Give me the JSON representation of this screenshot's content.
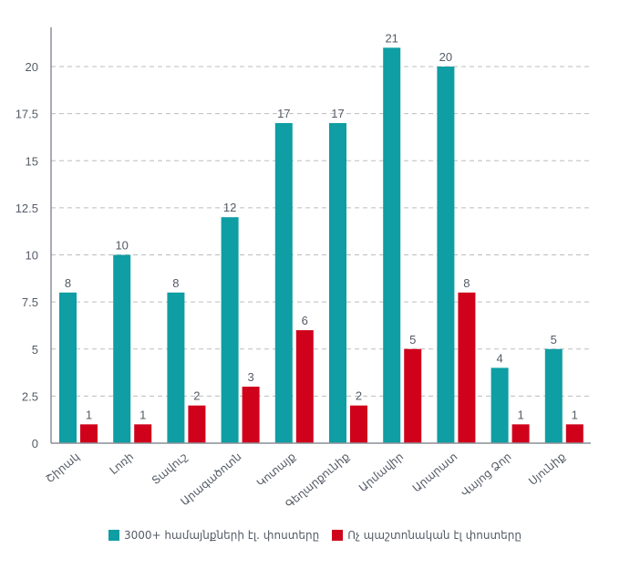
{
  "chart_data": {
    "type": "bar",
    "title": "",
    "xlabel": "",
    "ylabel": "",
    "ylim": [
      0,
      22.5
    ],
    "yticks": [
      0,
      2.5,
      5,
      7.5,
      10,
      12.5,
      15,
      17.5,
      20
    ],
    "ytick_labels": [
      "0",
      "2.5",
      "5",
      "7.5",
      "10",
      "12.5",
      "15",
      "17.5",
      "20"
    ],
    "grid": true,
    "legend_position": "bottom",
    "categories": [
      "Շիրակ",
      "Լոռի",
      "Տավուշ",
      "Արագածոտն",
      "Կոտայք",
      "Գեղարքունիք",
      "Արմավիր",
      "Արարատ",
      "Վայոց Ձոր",
      "Սյունիք"
    ],
    "series": [
      {
        "name": "3000+ համայնքների էլ. փոստերը",
        "color": "#0E9EA3",
        "values": [
          8,
          10,
          8,
          12,
          17,
          17,
          21,
          20,
          4,
          5
        ]
      },
      {
        "name": "Ոչ պաշտոնական էլ փոստերը",
        "color": "#D0021B",
        "values": [
          1,
          1,
          2,
          3,
          6,
          2,
          5,
          8,
          1,
          1
        ]
      }
    ]
  },
  "legend": {
    "items": [
      {
        "label": "3000+ համայնքների էլ. փոստերը",
        "color": "#0E9EA3"
      },
      {
        "label": "Ոչ պաշտոնական էլ փոստերը",
        "color": "#D0021B"
      }
    ]
  }
}
